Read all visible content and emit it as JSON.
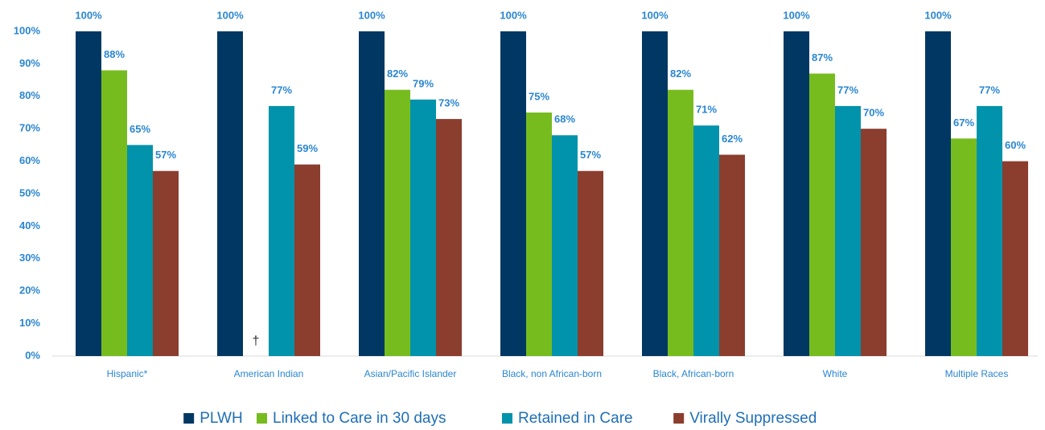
{
  "chart_data": {
    "type": "bar",
    "categories": [
      "Hispanic*",
      "American Indian",
      "Asian/Pacific Islander",
      "Black, non African-born",
      "Black, African-born",
      "White",
      "Multiple Races"
    ],
    "series": [
      {
        "name": "PLWH",
        "color": "#003763",
        "values": [
          100,
          100,
          100,
          100,
          100,
          100,
          100
        ],
        "value_labels": [
          "100%",
          "100%",
          "100%",
          "100%",
          "100%",
          "100%",
          "100%"
        ]
      },
      {
        "name": "Linked to Care in 30 days",
        "color": "#77bc1f",
        "values": [
          88,
          null,
          82,
          75,
          82,
          87,
          67
        ],
        "value_labels": [
          "88%",
          null,
          "82%",
          "75%",
          "82%",
          "87%",
          "67%"
        ]
      },
      {
        "name": "Retained in Care",
        "color": "#0093ab",
        "values": [
          65,
          77,
          79,
          68,
          71,
          77,
          77
        ],
        "value_labels": [
          "65%",
          "77%",
          "79%",
          "68%",
          "71%",
          "77%",
          "77%"
        ]
      },
      {
        "name": "Virally Suppressed",
        "color": "#8b3d2e",
        "values": [
          57,
          59,
          73,
          57,
          62,
          70,
          60
        ],
        "value_labels": [
          "57%",
          "59%",
          "73%",
          "57%",
          "62%",
          "70%",
          "60%"
        ]
      }
    ],
    "annotation": "†",
    "ylim": [
      0,
      100
    ],
    "yticks": [
      {
        "value": 0,
        "label": "0%"
      },
      {
        "value": 10,
        "label": "10%"
      },
      {
        "value": 20,
        "label": "20%"
      },
      {
        "value": 30,
        "label": "30%"
      },
      {
        "value": 40,
        "label": "40%"
      },
      {
        "value": 50,
        "label": "50%"
      },
      {
        "value": 60,
        "label": "60%"
      },
      {
        "value": 70,
        "label": "70%"
      },
      {
        "value": 80,
        "label": "80%"
      },
      {
        "value": 90,
        "label": "90%"
      },
      {
        "value": 100,
        "label": "100%"
      }
    ],
    "grid": false,
    "legend": "bottom"
  }
}
